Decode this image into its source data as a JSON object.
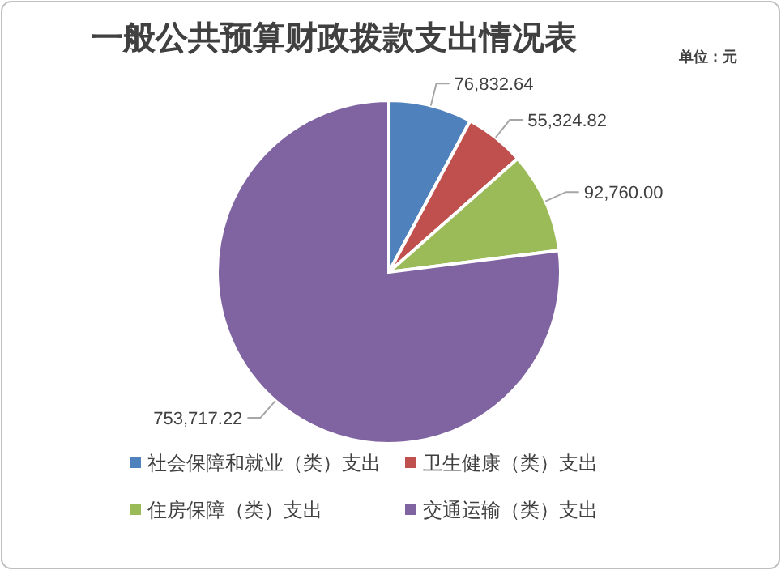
{
  "chart_data": {
    "type": "pie",
    "title": "一般公共预算财政拨款支出情况表",
    "annotations": [
      "单位：元"
    ],
    "categories": [
      "社会保障和就业（类）支出",
      "卫生健康（类）支出",
      "住房保障（类）支出",
      "交通运输（类）支出"
    ],
    "values": [
      76832.64,
      55324.82,
      92760.0,
      753717.22
    ],
    "value_labels": [
      "76,832.64",
      "55,324.82",
      "92,760.00",
      "753,717.22"
    ],
    "colors": [
      "#4f81bd",
      "#c0504d",
      "#9bbb59",
      "#8064a2"
    ],
    "legend": "bottom"
  }
}
